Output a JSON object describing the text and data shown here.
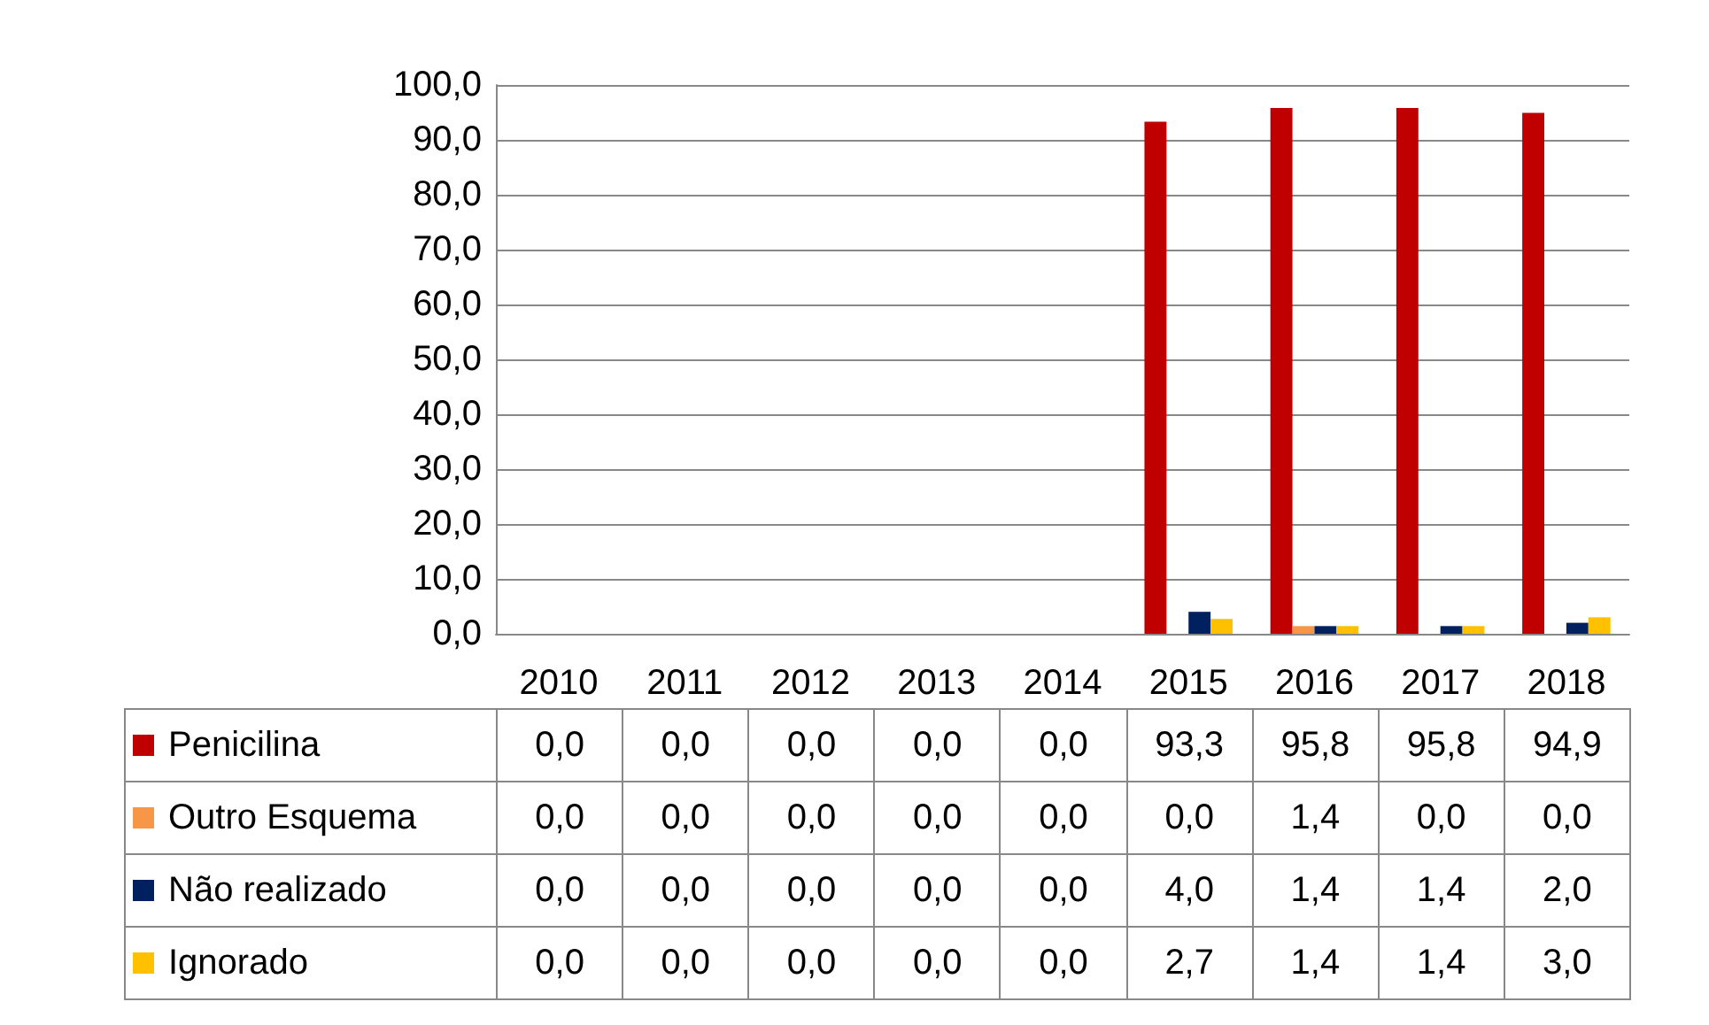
{
  "chart_data": {
    "type": "bar",
    "categories": [
      "2010",
      "2011",
      "2012",
      "2013",
      "2014",
      "2015",
      "2016",
      "2017",
      "2018"
    ],
    "series": [
      {
        "name": "Penicilina",
        "color": "#c00000",
        "values": [
          0,
          0,
          0,
          0,
          0,
          93.3,
          95.8,
          95.8,
          94.9
        ],
        "value_labels": [
          "0,0",
          "0,0",
          "0,0",
          "0,0",
          "0,0",
          "93,3",
          "95,8",
          "95,8",
          "94,9"
        ]
      },
      {
        "name": "Outro Esquema",
        "color": "#f79646",
        "values": [
          0,
          0,
          0,
          0,
          0,
          0,
          1.4,
          0,
          0
        ],
        "value_labels": [
          "0,0",
          "0,0",
          "0,0",
          "0,0",
          "0,0",
          "0,0",
          "1,4",
          "0,0",
          "0,0"
        ]
      },
      {
        "name": "Não realizado",
        "color": "#002060",
        "values": [
          0,
          0,
          0,
          0,
          0,
          4.0,
          1.4,
          1.4,
          2.0
        ],
        "value_labels": [
          "0,0",
          "0,0",
          "0,0",
          "0,0",
          "0,0",
          "4,0",
          "1,4",
          "1,4",
          "2,0"
        ]
      },
      {
        "name": "Ignorado",
        "color": "#ffc000",
        "values": [
          0,
          0,
          0,
          0,
          0,
          2.7,
          1.4,
          1.4,
          3.0
        ],
        "value_labels": [
          "0,0",
          "0,0",
          "0,0",
          "0,0",
          "0,0",
          "2,7",
          "1,4",
          "1,4",
          "3,0"
        ]
      }
    ],
    "ylim": [
      0,
      100
    ],
    "yticks": [
      {
        "value": 0,
        "label": "0,0"
      },
      {
        "value": 10,
        "label": "10,0"
      },
      {
        "value": 20,
        "label": "20,0"
      },
      {
        "value": 30,
        "label": "30,0"
      },
      {
        "value": 40,
        "label": "40,0"
      },
      {
        "value": 50,
        "label": "50,0"
      },
      {
        "value": 60,
        "label": "60,0"
      },
      {
        "value": 70,
        "label": "70,0"
      },
      {
        "value": 80,
        "label": "80,0"
      },
      {
        "value": 90,
        "label": "90,0"
      },
      {
        "value": 100,
        "label": "100,0"
      }
    ],
    "grid": "y",
    "legend": "bottom"
  }
}
